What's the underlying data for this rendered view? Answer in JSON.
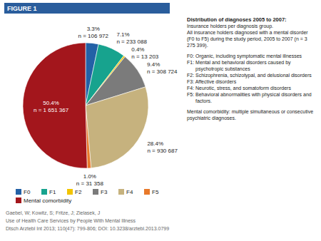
{
  "chart_data": {
    "type": "pie",
    "figure_label": "FIGURE 1",
    "title": "Distribution of diagnoses 2005 to 2007:",
    "subtitle": "Insurance holders per diagnosis group.",
    "annotations": [
      "All insurance holders diagnosed with a mental disorder (F0 to F5) during the study period, 2005 to 2007 (n = 3 275 399).",
      "F0: Organic, including symptomatic mental illnesses",
      "F1: Mental and behavioral disorders caused by psychotropic substances",
      "F2: Schizophrenia, schizotypal, and delusional disorders",
      "F3: Affective disorders",
      "F4: Neurotic, stress, and somatoform disorders",
      "F5: Behavioral abnormalities with physical disorders and factors.",
      "Mental comorbidity: multiple simultaneous or consecutive psychiatric diagnoses."
    ],
    "categories": [
      "F0",
      "F1",
      "F2",
      "F3",
      "F4",
      "F5",
      "Mental comorbidity"
    ],
    "values": [
      3.3,
      7.1,
      0.4,
      9.4,
      28.4,
      1.0,
      50.4
    ],
    "value_labels": [
      "3.3%",
      "7.1%",
      "0.4%",
      "9.4%",
      "28.4%",
      "1.0%",
      "50.4%"
    ],
    "count_labels": [
      "n = 106 972",
      "n = 233 088",
      "n = 13 203",
      "n = 308 724",
      "n = 930 687",
      "n = 31 358",
      "n = 1 651 367"
    ],
    "colors": [
      "#2361a6",
      "#17a38e",
      "#f2c400",
      "#7b7b7b",
      "#c6b27e",
      "#e8792a",
      "#a3161c"
    ],
    "data_labels": true,
    "legend": "bottom",
    "source": [
      "Gaebel, W; Kowitz, S; Fritze, J; Zielasek, J",
      "Use of Health Care Services by People With Mental Illness",
      "Dtsch Arztebl Int 2013; 110(47): 799-806; DOI: 10.3238/arztebl.2013.0799"
    ]
  }
}
